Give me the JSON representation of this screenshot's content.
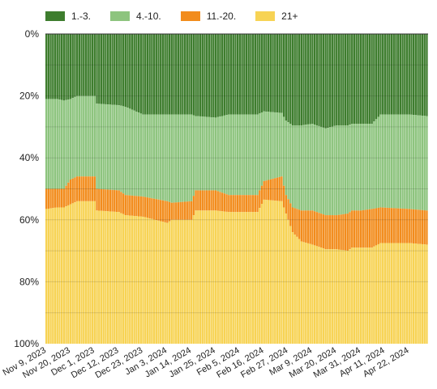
{
  "chart_data": {
    "type": "area",
    "stacked": true,
    "normalized": true,
    "y_axis": {
      "ticks": [
        "0%",
        "20%",
        "40%",
        "60%",
        "80%",
        "100%"
      ],
      "inverted": true,
      "range": [
        0,
        100
      ]
    },
    "x_tick_labels": [
      "Nov 9, 2023",
      "Nov 20, 2023",
      "Dec 1, 2023",
      "Dec 12, 2023",
      "Dec 23, 2023",
      "Jan 3, 2024",
      "Jan 14, 2024",
      "Jan 25, 2024",
      "Feb 5, 2024",
      "Feb 16, 2024",
      "Feb 27, 2024",
      "Mar 9, 2024",
      "Mar 20, 2024",
      "Mar 31, 2024",
      "Apr 11, 2024",
      "Apr 22, 2024"
    ],
    "legend_position": "top",
    "grid": true,
    "series": [
      {
        "name": "1.-3.",
        "color": "#3e7d2e"
      },
      {
        "name": "4.-10.",
        "color": "#8dc47e"
      },
      {
        "name": "11.-20.",
        "color": "#f28c1c"
      },
      {
        "name": "21+",
        "color": "#f7d354"
      }
    ],
    "cumulative_boundaries": {
      "description_units": "percent from top",
      "keyframes": [
        {
          "date": "2023-11-09",
          "values": [
            21,
            50,
            56.5
          ]
        },
        {
          "date": "2023-11-14",
          "values": [
            21,
            50,
            56
          ]
        },
        {
          "date": "2023-11-17",
          "values": [
            21.5,
            50,
            56
          ]
        },
        {
          "date": "2023-11-20",
          "values": [
            21,
            47,
            55
          ]
        },
        {
          "date": "2023-11-23",
          "values": [
            20,
            46,
            54
          ]
        },
        {
          "date": "2023-12-01",
          "values": [
            20,
            46,
            54
          ]
        },
        {
          "date": "2023-12-02",
          "values": [
            22.5,
            50,
            57
          ]
        },
        {
          "date": "2023-12-12",
          "values": [
            23,
            50.5,
            57.5
          ]
        },
        {
          "date": "2023-12-15",
          "values": [
            23.5,
            52,
            58.5
          ]
        },
        {
          "date": "2023-12-23",
          "values": [
            26,
            52.5,
            59
          ]
        },
        {
          "date": "2024-01-03",
          "values": [
            26,
            54,
            61
          ]
        },
        {
          "date": "2024-01-05",
          "values": [
            26,
            54.5,
            60
          ]
        },
        {
          "date": "2024-01-14",
          "values": [
            26,
            54,
            60
          ]
        },
        {
          "date": "2024-01-16",
          "values": [
            26.5,
            50.5,
            57
          ]
        },
        {
          "date": "2024-01-25",
          "values": [
            27,
            50.5,
            57
          ]
        },
        {
          "date": "2024-01-31",
          "values": [
            26,
            52,
            57.5
          ]
        },
        {
          "date": "2024-02-05",
          "values": [
            26,
            52,
            57.5
          ]
        },
        {
          "date": "2024-02-13",
          "values": [
            26,
            52,
            57.5
          ]
        },
        {
          "date": "2024-02-16",
          "values": [
            25,
            47.5,
            53.5
          ]
        },
        {
          "date": "2024-02-24",
          "values": [
            25.5,
            46,
            54
          ]
        },
        {
          "date": "2024-02-26",
          "values": [
            28,
            52,
            58
          ]
        },
        {
          "date": "2024-02-29",
          "values": [
            29.5,
            56,
            64
          ]
        },
        {
          "date": "2024-03-04",
          "values": [
            29.5,
            57,
            67
          ]
        },
        {
          "date": "2024-03-09",
          "values": [
            29,
            57,
            68
          ]
        },
        {
          "date": "2024-03-15",
          "values": [
            30.5,
            58.5,
            69.5
          ]
        },
        {
          "date": "2024-03-20",
          "values": [
            29.5,
            58.5,
            69.5
          ]
        },
        {
          "date": "2024-03-25",
          "values": [
            29.5,
            58,
            70
          ]
        },
        {
          "date": "2024-03-27",
          "values": [
            29,
            57,
            69
          ]
        },
        {
          "date": "2024-03-31",
          "values": [
            29,
            57,
            69
          ]
        },
        {
          "date": "2024-04-05",
          "values": [
            29,
            56.5,
            69
          ]
        },
        {
          "date": "2024-04-09",
          "values": [
            26,
            56,
            67.5
          ]
        },
        {
          "date": "2024-04-22",
          "values": [
            26,
            56.5,
            67.5
          ]
        },
        {
          "date": "2024-04-30",
          "values": [
            26.5,
            57,
            68
          ]
        }
      ]
    }
  }
}
